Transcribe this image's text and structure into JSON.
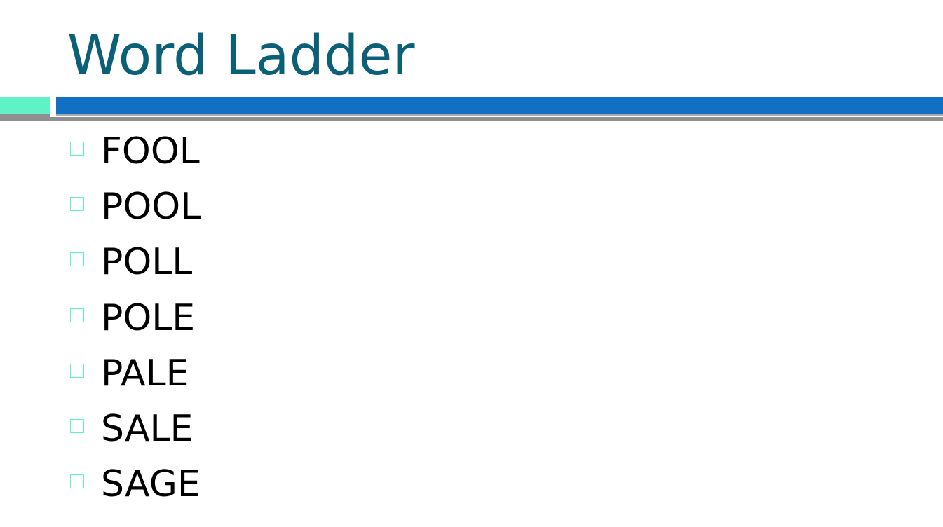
{
  "slide": {
    "title": "Word Ladder",
    "words": [
      "FOOL",
      "POOL",
      "POLL",
      "POLE",
      "PALE",
      "SALE",
      "SAGE"
    ]
  },
  "colors": {
    "title": "#0b6078",
    "accent_block": "#5ff2c6",
    "bar": "#1270c4",
    "rule": "#8f8f8f",
    "bullet": "#5ff2c6",
    "text": "#000000"
  },
  "icons": {
    "bullet": "hollow-square-bullet-icon"
  }
}
